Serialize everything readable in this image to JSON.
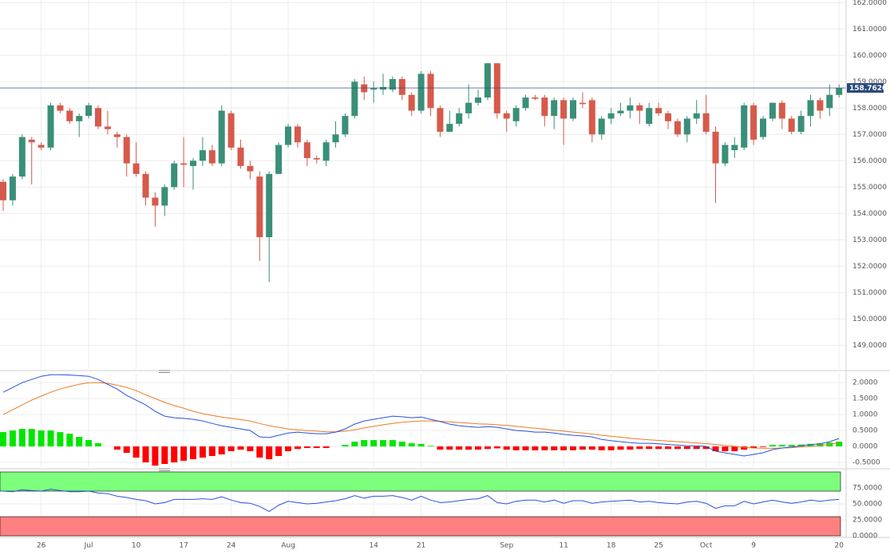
{
  "chart_data": [
    {
      "type": "candlestick",
      "categories": [
        null,
        null,
        null,
        null,
        "26",
        null,
        null,
        null,
        null,
        "Jul",
        null,
        null,
        null,
        null,
        "10",
        null,
        null,
        null,
        null,
        "17",
        null,
        null,
        null,
        null,
        "24",
        null,
        null,
        null,
        null,
        null,
        "Aug",
        null,
        null,
        null,
        null,
        null,
        null,
        null,
        null,
        "14",
        null,
        null,
        null,
        null,
        "21",
        null,
        null,
        null,
        null,
        null,
        null,
        null,
        null,
        "Sep",
        null,
        null,
        null,
        null,
        null,
        "11",
        null,
        null,
        null,
        null,
        "18",
        null,
        null,
        null,
        null,
        "25",
        null,
        null,
        null,
        null,
        "Oct",
        null,
        null,
        null,
        null,
        "9",
        null,
        null,
        null,
        null,
        null,
        null,
        null,
        null,
        "20"
      ],
      "open": [
        155.2,
        154.5,
        155.4,
        156.8,
        156.6,
        156.5,
        158.1,
        157.9,
        157.5,
        157.7,
        158.0,
        157.3,
        157.0,
        156.9,
        155.9,
        155.5,
        154.6,
        154.3,
        155.0,
        155.9,
        155.8,
        156.0,
        156.4,
        155.9,
        157.8,
        156.5,
        155.8,
        155.4,
        153.1,
        155.5,
        156.6,
        157.3,
        156.7,
        156.1,
        156.0,
        156.7,
        157.0,
        157.7,
        158.9,
        158.7,
        158.7,
        158.7,
        159.1,
        158.5,
        157.9,
        159.3,
        158.0,
        157.1,
        157.4,
        157.8,
        158.2,
        158.4,
        159.7,
        157.8,
        157.5,
        158.0,
        158.4,
        158.4,
        157.7,
        158.3,
        157.6,
        158.2,
        158.3,
        157.0,
        157.6,
        157.8,
        157.9,
        158.1,
        157.4,
        158.0,
        157.8,
        157.5,
        157.0,
        157.6,
        157.8,
        157.1,
        155.9,
        156.4,
        156.5,
        158.1,
        156.9,
        157.6,
        158.2,
        157.6,
        157.1,
        157.7,
        158.3,
        158.0,
        158.5
      ],
      "high": [
        155.3,
        155.5,
        157.0,
        156.9,
        156.7,
        158.2,
        158.2,
        158.0,
        157.8,
        158.2,
        158.1,
        157.9,
        157.1,
        157.0,
        156.7,
        155.6,
        154.8,
        155.1,
        156.0,
        156.9,
        156.1,
        156.9,
        156.6,
        158.1,
        157.9,
        156.8,
        156.0,
        155.6,
        155.6,
        156.7,
        157.4,
        157.4,
        156.8,
        156.2,
        156.8,
        157.5,
        157.8,
        159.1,
        159.2,
        159.0,
        159.3,
        159.2,
        159.2,
        158.6,
        159.4,
        159.4,
        158.1,
        157.9,
        158.0,
        158.9,
        158.7,
        159.7,
        159.7,
        157.9,
        158.1,
        158.5,
        158.5,
        158.5,
        158.4,
        158.4,
        158.4,
        158.6,
        158.4,
        157.7,
        158.0,
        158.2,
        158.4,
        158.2,
        158.2,
        158.2,
        157.9,
        157.6,
        157.7,
        158.3,
        158.5,
        157.3,
        156.7,
        156.9,
        158.2,
        158.2,
        157.7,
        158.2,
        158.3,
        157.7,
        157.9,
        158.5,
        158.4,
        158.9,
        158.9
      ],
      "low": [
        154.1,
        154.3,
        155.3,
        155.1,
        156.4,
        156.4,
        157.8,
        157.4,
        156.9,
        157.6,
        157.2,
        157.0,
        156.5,
        155.4,
        155.4,
        154.3,
        153.5,
        153.9,
        154.9,
        155.0,
        154.9,
        155.8,
        155.8,
        155.8,
        156.4,
        155.7,
        155.3,
        152.2,
        151.4,
        155.5,
        156.5,
        156.5,
        155.8,
        155.9,
        155.8,
        156.5,
        156.9,
        157.6,
        158.3,
        158.2,
        158.5,
        158.6,
        158.3,
        157.7,
        157.8,
        157.7,
        156.9,
        157.1,
        157.3,
        157.6,
        158.1,
        158.3,
        157.6,
        157.1,
        157.3,
        157.9,
        158.3,
        157.3,
        157.2,
        156.6,
        157.5,
        158.0,
        156.7,
        156.8,
        157.4,
        157.7,
        157.6,
        157.4,
        157.3,
        157.7,
        157.2,
        156.9,
        156.7,
        157.4,
        157.0,
        154.4,
        155.8,
        156.1,
        156.4,
        156.6,
        156.8,
        157.5,
        157.2,
        157.0,
        157.0,
        157.3,
        157.6,
        157.7,
        158.4
      ],
      "close": [
        154.5,
        155.4,
        156.9,
        156.7,
        156.5,
        158.1,
        157.9,
        157.5,
        157.7,
        158.1,
        157.3,
        157.2,
        156.9,
        155.9,
        155.5,
        154.6,
        154.3,
        155.0,
        155.9,
        155.85,
        156.0,
        156.4,
        155.9,
        157.9,
        156.5,
        155.8,
        155.6,
        153.1,
        155.5,
        156.6,
        157.3,
        156.7,
        156.1,
        156.05,
        156.7,
        157.0,
        157.7,
        159.0,
        158.6,
        158.75,
        158.8,
        159.1,
        158.5,
        157.9,
        159.3,
        158.0,
        157.1,
        157.4,
        157.8,
        158.2,
        158.4,
        159.7,
        157.8,
        157.6,
        158.0,
        158.4,
        158.35,
        157.7,
        158.3,
        157.6,
        158.3,
        158.15,
        157.0,
        157.6,
        157.8,
        157.9,
        158.1,
        157.9,
        158.0,
        157.8,
        157.5,
        157.0,
        157.6,
        157.8,
        157.1,
        155.9,
        156.6,
        156.6,
        158.1,
        156.8,
        157.6,
        158.2,
        157.6,
        157.1,
        157.7,
        158.3,
        157.9,
        158.5,
        158.762
      ],
      "up_color": "#3a8f78",
      "down_color": "#d65a4b",
      "ylim": [
        148.1,
        162.1
      ],
      "yticks": [
        {
          "value": 149,
          "label": "149.0000"
        },
        {
          "value": 150,
          "label": "150.0000"
        },
        {
          "value": 151,
          "label": "151.0000"
        },
        {
          "value": 152,
          "label": "152.0000"
        },
        {
          "value": 153,
          "label": "153.0000"
        },
        {
          "value": 154,
          "label": "154.0000"
        },
        {
          "value": 155,
          "label": "155.0000"
        },
        {
          "value": 156,
          "label": "156.0000"
        },
        {
          "value": 157,
          "label": "157.0000"
        },
        {
          "value": 158,
          "label": "158.0000"
        },
        {
          "value": 159,
          "label": "159.0000"
        },
        {
          "value": 160,
          "label": "160.0000"
        },
        {
          "value": 161,
          "label": "161.0000"
        },
        {
          "value": 162,
          "label": "162.0000"
        }
      ],
      "last_price": {
        "value": 158.762,
        "label": "158.7620"
      },
      "last_price_color": "#2b4a7c"
    },
    {
      "type": "macd",
      "macd_line": {
        "color": "#2a52e0",
        "values": [
          1.7,
          1.85,
          2.0,
          2.1,
          2.2,
          2.25,
          2.25,
          2.24,
          2.22,
          2.2,
          2.1,
          1.95,
          1.8,
          1.6,
          1.45,
          1.3,
          1.1,
          0.95,
          0.9,
          0.88,
          0.85,
          0.8,
          0.72,
          0.65,
          0.6,
          0.55,
          0.5,
          0.3,
          0.28,
          0.35,
          0.42,
          0.45,
          0.42,
          0.4,
          0.4,
          0.45,
          0.55,
          0.7,
          0.8,
          0.85,
          0.9,
          0.95,
          0.93,
          0.9,
          0.92,
          0.85,
          0.78,
          0.7,
          0.65,
          0.62,
          0.6,
          0.62,
          0.6,
          0.55,
          0.5,
          0.48,
          0.45,
          0.45,
          0.42,
          0.38,
          0.35,
          0.33,
          0.3,
          0.22,
          0.18,
          0.15,
          0.12,
          0.1,
          0.1,
          0.08,
          0.06,
          0.04,
          0.02,
          0.02,
          0.0,
          -0.15,
          -0.2,
          -0.25,
          -0.3,
          -0.25,
          -0.2,
          -0.1,
          -0.05,
          -0.02,
          0.02,
          0.06,
          0.08,
          0.15,
          0.25
        ]
      },
      "signal_line": {
        "color": "#f07a22",
        "values": [
          1.0,
          1.15,
          1.3,
          1.45,
          1.58,
          1.7,
          1.8,
          1.88,
          1.95,
          2.0,
          2.0,
          1.98,
          1.92,
          1.85,
          1.75,
          1.62,
          1.5,
          1.38,
          1.28,
          1.2,
          1.1,
          1.03,
          0.97,
          0.92,
          0.88,
          0.84,
          0.8,
          0.72,
          0.65,
          0.6,
          0.55,
          0.52,
          0.5,
          0.48,
          0.46,
          0.46,
          0.48,
          0.52,
          0.58,
          0.63,
          0.68,
          0.72,
          0.76,
          0.78,
          0.8,
          0.8,
          0.79,
          0.77,
          0.75,
          0.73,
          0.71,
          0.7,
          0.68,
          0.66,
          0.63,
          0.6,
          0.57,
          0.54,
          0.51,
          0.48,
          0.45,
          0.42,
          0.39,
          0.35,
          0.32,
          0.29,
          0.26,
          0.23,
          0.21,
          0.19,
          0.17,
          0.15,
          0.13,
          0.11,
          0.09,
          0.06,
          0.03,
          0.0,
          -0.03,
          -0.05,
          -0.06,
          -0.06,
          -0.05,
          -0.04,
          -0.02,
          0.0,
          0.03,
          0.07,
          0.12
        ]
      },
      "histogram": {
        "up_color": "#00e600",
        "down_color": "#ff0000",
        "values": [
          0.45,
          0.5,
          0.55,
          0.55,
          0.5,
          0.5,
          0.45,
          0.4,
          0.3,
          0.2,
          0.1,
          0,
          -0.1,
          -0.2,
          -0.35,
          -0.5,
          -0.6,
          -0.55,
          -0.5,
          -0.45,
          -0.4,
          -0.35,
          -0.3,
          -0.25,
          -0.15,
          -0.1,
          -0.15,
          -0.35,
          -0.4,
          -0.3,
          -0.15,
          -0.08,
          -0.05,
          -0.05,
          -0.05,
          0,
          0.05,
          0.15,
          0.2,
          0.2,
          0.2,
          0.2,
          0.15,
          0.1,
          0.08,
          0.02,
          -0.1,
          -0.1,
          -0.1,
          -0.1,
          -0.1,
          -0.08,
          -0.06,
          -0.1,
          -0.12,
          -0.12,
          -0.12,
          -0.12,
          -0.12,
          -0.12,
          -0.12,
          -0.1,
          -0.1,
          -0.12,
          -0.12,
          -0.1,
          -0.1,
          -0.08,
          -0.08,
          -0.08,
          -0.08,
          -0.08,
          -0.08,
          -0.08,
          -0.08,
          -0.15,
          -0.15,
          -0.15,
          -0.1,
          -0.05,
          -0.02,
          0.05,
          0.05,
          0.05,
          0.06,
          0.08,
          0.1,
          0.12,
          0.15
        ]
      },
      "ylim": [
        -0.65,
        2.28
      ],
      "yticks": [
        {
          "value": -0.5,
          "label": "-0.5000"
        },
        {
          "value": 0,
          "label": "0.0000"
        },
        {
          "value": 0.5,
          "label": "0.5000"
        },
        {
          "value": 1,
          "label": "1.0000"
        },
        {
          "value": 1.5,
          "label": "1.5000"
        },
        {
          "value": 2,
          "label": "2.0000"
        }
      ]
    },
    {
      "type": "line",
      "color": "#2a52e0",
      "values": [
        70,
        69,
        72,
        71,
        70,
        73,
        71,
        69,
        69,
        70,
        67,
        66,
        62,
        60,
        57,
        55,
        50,
        52,
        57,
        57,
        57,
        58,
        57,
        61,
        56,
        52,
        51,
        46,
        38,
        48,
        54,
        52,
        50,
        51,
        53,
        55,
        58,
        63,
        59,
        62,
        62,
        63,
        60,
        56,
        62,
        56,
        52,
        53,
        55,
        57,
        58,
        63,
        52,
        50,
        54,
        56,
        56,
        53,
        56,
        51,
        55,
        55,
        51,
        53,
        54,
        55,
        56,
        53,
        54,
        52,
        51,
        50,
        53,
        54,
        51,
        43,
        47,
        47,
        54,
        50,
        53,
        56,
        53,
        51,
        53,
        56,
        54,
        56,
        57
      ],
      "bands": [
        {
          "from": 70,
          "to": 100,
          "color": "#7dff7d"
        },
        {
          "from": 0,
          "to": 30,
          "color": "#ff8080"
        }
      ],
      "ylim": [
        0,
        100
      ],
      "yticks": [
        {
          "value": 0,
          "label": "0.0000"
        },
        {
          "value": 25,
          "label": "25.0000"
        },
        {
          "value": 50,
          "label": "50.0000"
        },
        {
          "value": 75,
          "label": "75.0000"
        }
      ]
    }
  ]
}
